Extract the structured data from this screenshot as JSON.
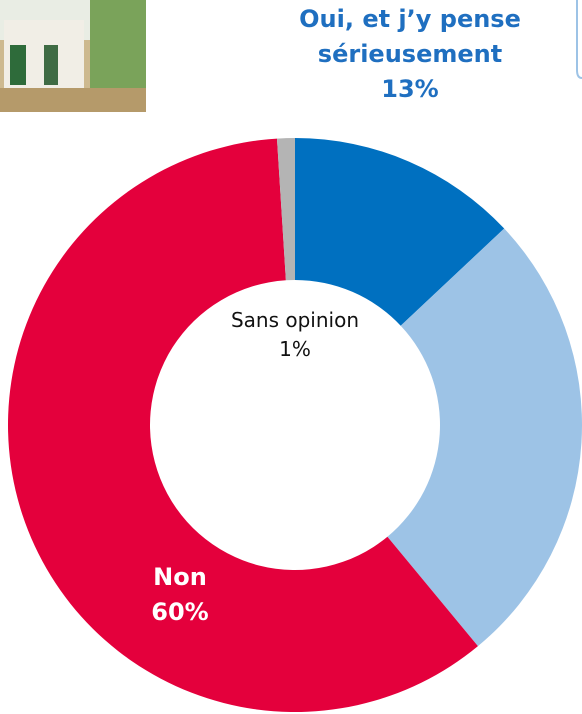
{
  "chart_data": {
    "type": "donut",
    "categories": [
      "Oui, et j’y pense sérieusement",
      null,
      "Non",
      "Sans opinion"
    ],
    "values": [
      13,
      26,
      60,
      1
    ],
    "value_labels": [
      "13%",
      null,
      "60%",
      "1%"
    ],
    "colors": [
      "#0070c0",
      "#9dc3e6",
      "#e4003c",
      "#b4b4b4"
    ]
  }
}
